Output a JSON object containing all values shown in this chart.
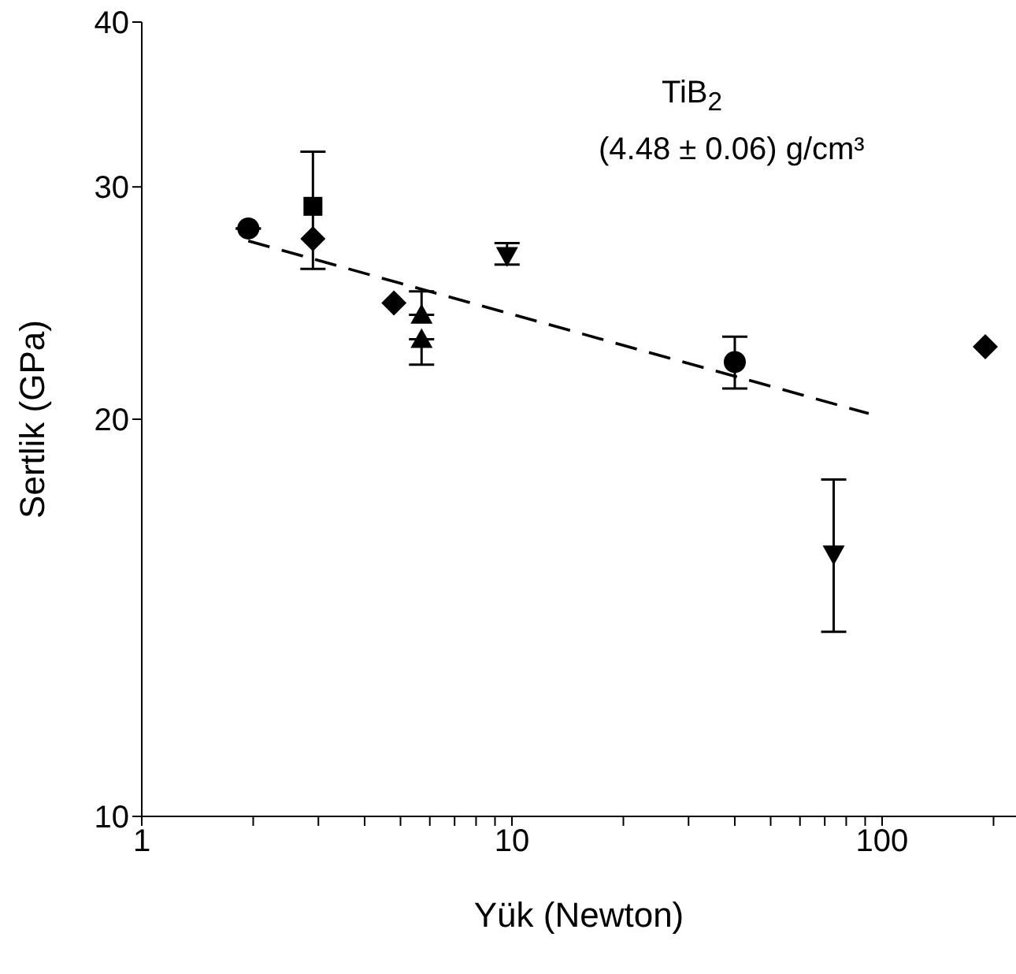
{
  "chart_data": {
    "type": "scatter",
    "xlabel": "Yük (Newton)",
    "ylabel": "Sertlik (GPa)",
    "annotations": [
      "TiB$_{2}$",
      "(4.48 ± 0.06) g/cm³"
    ],
    "log": "xy",
    "xlim": [
      1,
      230
    ],
    "ylim": [
      10,
      40
    ],
    "xticks": [
      1,
      {
        "value": 2,
        "label": null
      },
      {
        "value": 3,
        "label": null
      },
      {
        "value": 4,
        "label": null
      },
      {
        "value": 5,
        "label": null
      },
      {
        "value": 6,
        "label": null
      },
      {
        "value": 7,
        "label": null
      },
      {
        "value": 8,
        "label": null
      },
      {
        "value": 9,
        "label": null
      },
      10,
      {
        "value": 20,
        "label": null
      },
      {
        "value": 30,
        "label": null
      },
      {
        "value": 40,
        "label": null
      },
      {
        "value": 50,
        "label": null
      },
      {
        "value": 60,
        "label": null
      },
      {
        "value": 70,
        "label": null
      },
      {
        "value": 80,
        "label": null
      },
      {
        "value": 90,
        "label": null
      },
      100,
      {
        "value": 200,
        "label": null
      }
    ],
    "yticks": [
      10,
      20,
      30,
      40
    ],
    "series": [
      {
        "color": "#000000",
        "marker": "circle",
        "x": [
          1.94,
          40
        ],
        "values": [
          27.9,
          22.1
        ],
        "errors": [
          null,
          1.0
        ]
      },
      {
        "color": "#000000",
        "marker": "square",
        "x": [
          2.9
        ],
        "values": [
          29.0
        ],
        "errors": [
          [
            26.0,
            31.9
          ]
        ]
      },
      {
        "color": "#000000",
        "marker": "diamond",
        "x": [
          2.9,
          4.8,
          190
        ],
        "values": [
          27.4,
          24.5,
          22.7
        ]
      },
      {
        "color": "#000000",
        "marker": "triangle",
        "x": [
          5.7,
          5.7
        ],
        "values": [
          24.0,
          23.0
        ],
        "errors": [
          [
            24.0,
            25.0
          ],
          [
            22.0,
            23.0
          ]
        ]
      },
      {
        "color": "#000000",
        "marker": "triangle-down",
        "x": [
          9.7,
          74
        ],
        "values": [
          26.6,
          15.8
        ],
        "errors": [
          [
            26.2,
            27.2
          ],
          [
            13.8,
            18.0
          ]
        ]
      },
      {
        "type": "line",
        "color": "#000000",
        "line_style": "dashed",
        "marker": "none",
        "x": [
          1.94,
          92
        ],
        "values": [
          27.3,
          20.2
        ]
      }
    ]
  }
}
